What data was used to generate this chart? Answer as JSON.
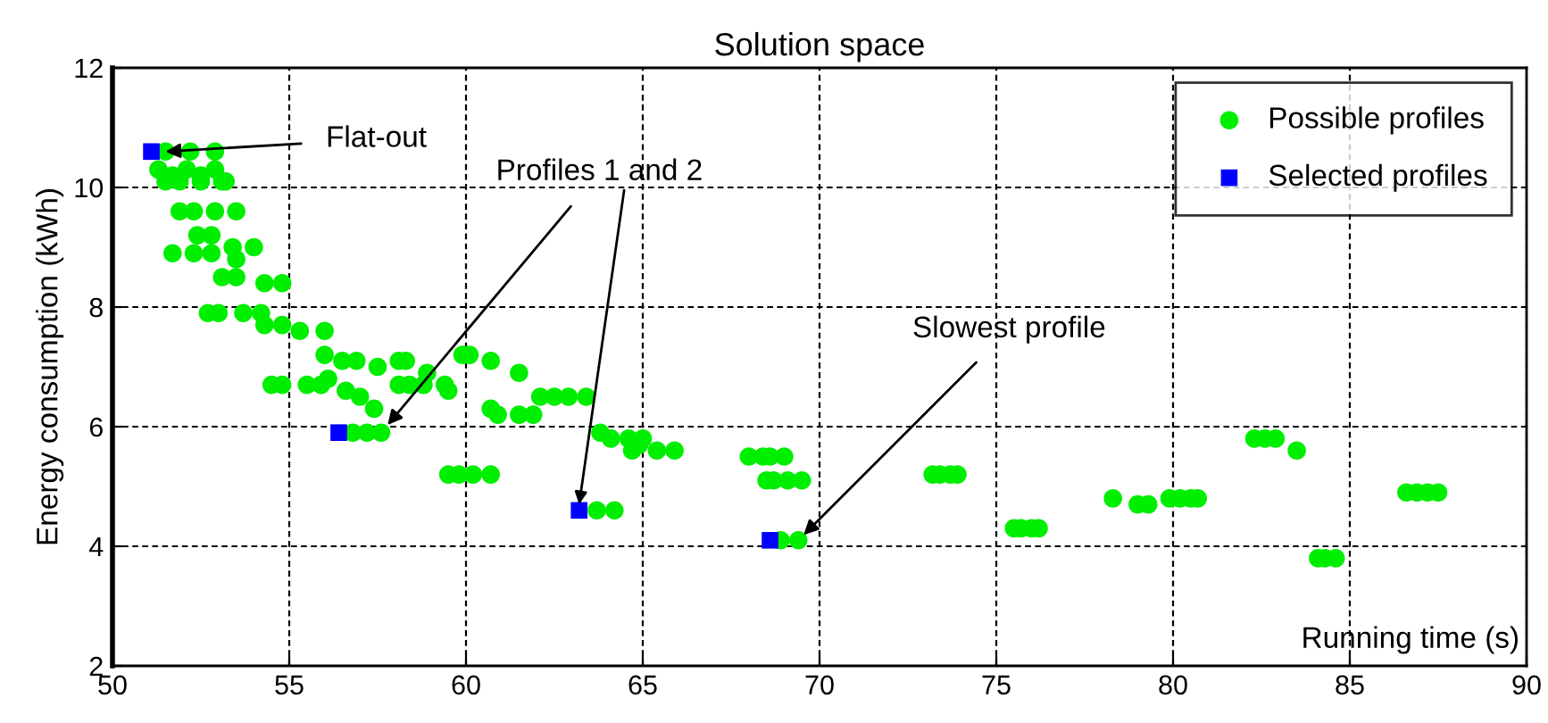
{
  "chart_data": {
    "type": "scatter",
    "title": "Solution space",
    "xlabel": "Running time (s)",
    "ylabel": "Energy consumption (kWh)",
    "xlim": [
      50,
      90
    ],
    "xticks": [
      50,
      55,
      60,
      65,
      70,
      75,
      80,
      85,
      90
    ],
    "ylim": [
      2,
      12
    ],
    "yticks": [
      2,
      4,
      6,
      8,
      10,
      12
    ],
    "grid": true,
    "legend": "top right",
    "series": [
      {
        "name": "Possible profiles",
        "color": "#00ee00",
        "marker": "circle",
        "x": [
          51.5,
          52.2,
          52.9,
          51.3,
          51.7,
          52.1,
          52.5,
          52.9,
          53.1,
          51.5,
          51.9,
          52.5,
          53.2,
          51.9,
          52.3,
          52.9,
          53.5,
          52.4,
          52.8,
          51.7,
          52.3,
          52.8,
          53.4,
          53.5,
          54.0,
          53.1,
          53.5,
          54.3,
          54.8,
          52.7,
          53.0,
          53.7,
          54.2,
          54.3,
          54.8,
          55.3,
          56.0,
          56.0,
          56.5,
          56.9,
          57.5,
          58.1,
          58.3,
          58.9,
          59.4,
          59.9,
          60.1,
          60.7,
          61.5,
          54.5,
          54.8,
          55.5,
          55.9,
          56.1,
          56.6,
          57.0,
          57.4,
          58.1,
          58.4,
          58.8,
          59.5,
          62.1,
          62.5,
          62.9,
          63.4,
          60.7,
          60.9,
          61.5,
          61.9,
          56.8,
          57.2,
          57.6,
          63.8,
          64.1,
          64.6,
          65.0,
          64.9,
          64.7,
          65.4,
          65.9,
          59.5,
          59.8,
          60.2,
          60.7,
          63.7,
          64.2,
          68.0,
          68.4,
          68.6,
          69.0,
          68.5,
          68.7,
          69.1,
          69.5,
          68.9,
          69.4,
          73.2,
          73.4,
          73.7,
          73.9,
          75.5,
          75.7,
          76.0,
          76.2,
          78.3,
          79.0,
          79.3,
          79.9,
          80.2,
          80.5,
          80.7,
          82.3,
          82.6,
          82.9,
          83.5,
          84.1,
          84.3,
          84.6,
          86.6,
          86.9,
          87.2,
          87.5
        ],
        "values": [
          10.6,
          10.6,
          10.6,
          10.3,
          10.2,
          10.3,
          10.2,
          10.3,
          10.1,
          10.1,
          10.1,
          10.1,
          10.1,
          9.6,
          9.6,
          9.6,
          9.6,
          9.2,
          9.2,
          8.9,
          8.9,
          8.9,
          9.0,
          8.8,
          9.0,
          8.5,
          8.5,
          8.4,
          8.4,
          7.9,
          7.9,
          7.9,
          7.9,
          7.7,
          7.7,
          7.6,
          7.6,
          7.2,
          7.1,
          7.1,
          7.0,
          7.1,
          7.1,
          6.9,
          6.7,
          7.2,
          7.2,
          7.1,
          6.9,
          6.7,
          6.7,
          6.7,
          6.7,
          6.8,
          6.6,
          6.5,
          6.3,
          6.7,
          6.7,
          6.7,
          6.6,
          6.5,
          6.5,
          6.5,
          6.5,
          6.3,
          6.2,
          6.2,
          6.2,
          5.9,
          5.9,
          5.9,
          5.9,
          5.8,
          5.8,
          5.8,
          5.7,
          5.6,
          5.6,
          5.6,
          5.2,
          5.2,
          5.2,
          5.2,
          4.6,
          4.6,
          5.5,
          5.5,
          5.5,
          5.5,
          5.1,
          5.1,
          5.1,
          5.1,
          4.1,
          4.1,
          5.2,
          5.2,
          5.2,
          5.2,
          4.3,
          4.3,
          4.3,
          4.3,
          4.8,
          4.7,
          4.7,
          4.8,
          4.8,
          4.8,
          4.8,
          5.8,
          5.8,
          5.8,
          5.6,
          3.8,
          3.8,
          3.8,
          4.9,
          4.9,
          4.9,
          4.9
        ]
      },
      {
        "name": "Selected profiles",
        "color": "#0000ff",
        "marker": "square",
        "x": [
          51.1,
          56.4,
          63.2,
          68.6
        ],
        "values": [
          10.6,
          5.9,
          4.6,
          4.1
        ]
      }
    ],
    "annotations": [
      {
        "text": "Flat-out",
        "x": 51.5,
        "y": 10.6
      },
      {
        "text": "Profiles 1 and 2",
        "x": 57.6,
        "y": 5.9
      },
      {
        "text": "Slowest profile",
        "x": 69.4,
        "y": 4.1
      }
    ]
  }
}
